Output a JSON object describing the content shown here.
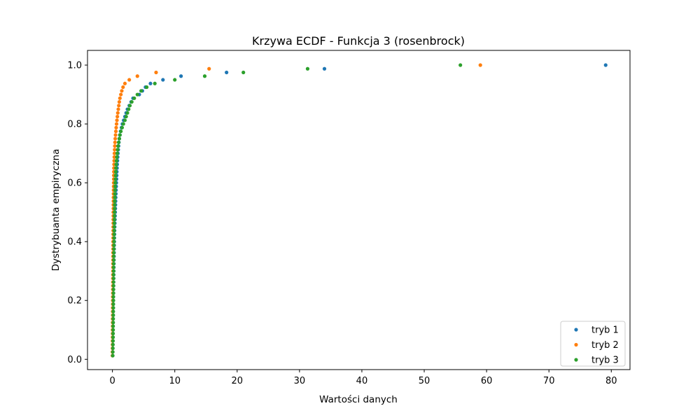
{
  "chart_data": {
    "type": "scatter",
    "title": "Krzywa ECDF - Funkcja 3 (rosenbrock)",
    "xlabel": "Wartości danych",
    "ylabel": "Dystrybuanta empiryczna",
    "xlim": [
      -4,
      83
    ],
    "ylim": [
      -0.035,
      1.05
    ],
    "xticks": [
      0,
      10,
      20,
      30,
      40,
      50,
      60,
      70,
      80
    ],
    "yticks": [
      0.0,
      0.2,
      0.4,
      0.6,
      0.8,
      1.0
    ],
    "xtick_labels": [
      "0",
      "10",
      "20",
      "30",
      "40",
      "50",
      "60",
      "70",
      "80"
    ],
    "ytick_labels": [
      "0.0",
      "0.2",
      "0.4",
      "0.6",
      "0.8",
      "1.0"
    ],
    "grid": false,
    "legend_position": "bottom-right",
    "series": [
      {
        "name": "tryb 1",
        "color": "#1f77b4",
        "points": [
          [
            0.02,
            0.0125
          ],
          [
            0.03,
            0.025
          ],
          [
            0.04,
            0.0375
          ],
          [
            0.05,
            0.05
          ],
          [
            0.05,
            0.0625
          ],
          [
            0.06,
            0.075
          ],
          [
            0.07,
            0.0875
          ],
          [
            0.07,
            0.1
          ],
          [
            0.08,
            0.1125
          ],
          [
            0.09,
            0.125
          ],
          [
            0.1,
            0.1375
          ],
          [
            0.1,
            0.15
          ],
          [
            0.11,
            0.1625
          ],
          [
            0.12,
            0.175
          ],
          [
            0.13,
            0.1875
          ],
          [
            0.13,
            0.2
          ],
          [
            0.14,
            0.2125
          ],
          [
            0.15,
            0.225
          ],
          [
            0.16,
            0.2375
          ],
          [
            0.17,
            0.25
          ],
          [
            0.18,
            0.2625
          ],
          [
            0.19,
            0.275
          ],
          [
            0.2,
            0.2875
          ],
          [
            0.21,
            0.3
          ],
          [
            0.22,
            0.3125
          ],
          [
            0.23,
            0.325
          ],
          [
            0.24,
            0.3375
          ],
          [
            0.25,
            0.35
          ],
          [
            0.26,
            0.3625
          ],
          [
            0.27,
            0.375
          ],
          [
            0.28,
            0.3875
          ],
          [
            0.3,
            0.4
          ],
          [
            0.31,
            0.4125
          ],
          [
            0.33,
            0.425
          ],
          [
            0.34,
            0.4375
          ],
          [
            0.36,
            0.45
          ],
          [
            0.38,
            0.4625
          ],
          [
            0.4,
            0.475
          ],
          [
            0.42,
            0.4875
          ],
          [
            0.44,
            0.5
          ],
          [
            0.46,
            0.5125
          ],
          [
            0.48,
            0.525
          ],
          [
            0.5,
            0.5375
          ],
          [
            0.52,
            0.55
          ],
          [
            0.55,
            0.5625
          ],
          [
            0.57,
            0.575
          ],
          [
            0.6,
            0.5875
          ],
          [
            0.62,
            0.6
          ],
          [
            0.65,
            0.6125
          ],
          [
            0.68,
            0.625
          ],
          [
            0.7,
            0.6375
          ],
          [
            0.73,
            0.65
          ],
          [
            0.76,
            0.6625
          ],
          [
            0.8,
            0.675
          ],
          [
            0.84,
            0.6875
          ],
          [
            0.88,
            0.7
          ],
          [
            0.93,
            0.7125
          ],
          [
            0.98,
            0.725
          ],
          [
            1.03,
            0.7375
          ],
          [
            1.1,
            0.75
          ],
          [
            1.2,
            0.7625
          ],
          [
            1.3,
            0.775
          ],
          [
            1.45,
            0.7875
          ],
          [
            1.6,
            0.8
          ],
          [
            1.8,
            0.8125
          ],
          [
            2.0,
            0.825
          ],
          [
            2.2,
            0.8375
          ],
          [
            2.4,
            0.85
          ],
          [
            2.7,
            0.8625
          ],
          [
            3.0,
            0.875
          ],
          [
            3.3,
            0.8875
          ],
          [
            4.3,
            0.9
          ],
          [
            4.8,
            0.9125
          ],
          [
            5.3,
            0.925
          ],
          [
            6.1,
            0.9375
          ],
          [
            8.1,
            0.95
          ],
          [
            11.0,
            0.9625
          ],
          [
            18.3,
            0.975
          ],
          [
            34.0,
            0.9875
          ],
          [
            79.1,
            1.0
          ]
        ]
      },
      {
        "name": "tryb 2",
        "color": "#ff7f0e",
        "points": [
          [
            0.0,
            0.0125
          ],
          [
            0.0,
            0.025
          ],
          [
            0.01,
            0.0375
          ],
          [
            0.01,
            0.05
          ],
          [
            0.01,
            0.0625
          ],
          [
            0.02,
            0.075
          ],
          [
            0.02,
            0.0875
          ],
          [
            0.02,
            0.1
          ],
          [
            0.03,
            0.1125
          ],
          [
            0.03,
            0.125
          ],
          [
            0.03,
            0.1375
          ],
          [
            0.04,
            0.15
          ],
          [
            0.04,
            0.1625
          ],
          [
            0.04,
            0.175
          ],
          [
            0.05,
            0.1875
          ],
          [
            0.05,
            0.2
          ],
          [
            0.05,
            0.2125
          ],
          [
            0.06,
            0.225
          ],
          [
            0.06,
            0.2375
          ],
          [
            0.06,
            0.25
          ],
          [
            0.07,
            0.2625
          ],
          [
            0.07,
            0.275
          ],
          [
            0.07,
            0.2875
          ],
          [
            0.08,
            0.3
          ],
          [
            0.08,
            0.3125
          ],
          [
            0.08,
            0.325
          ],
          [
            0.09,
            0.3375
          ],
          [
            0.09,
            0.35
          ],
          [
            0.09,
            0.3625
          ],
          [
            0.1,
            0.375
          ],
          [
            0.1,
            0.3875
          ],
          [
            0.1,
            0.4
          ],
          [
            0.11,
            0.4125
          ],
          [
            0.11,
            0.425
          ],
          [
            0.12,
            0.4375
          ],
          [
            0.12,
            0.45
          ],
          [
            0.13,
            0.4625
          ],
          [
            0.13,
            0.475
          ],
          [
            0.14,
            0.4875
          ],
          [
            0.14,
            0.5
          ],
          [
            0.15,
            0.5125
          ],
          [
            0.15,
            0.525
          ],
          [
            0.16,
            0.5375
          ],
          [
            0.16,
            0.55
          ],
          [
            0.17,
            0.5625
          ],
          [
            0.18,
            0.575
          ],
          [
            0.19,
            0.5875
          ],
          [
            0.2,
            0.6
          ],
          [
            0.21,
            0.6125
          ],
          [
            0.22,
            0.625
          ],
          [
            0.23,
            0.6375
          ],
          [
            0.24,
            0.65
          ],
          [
            0.26,
            0.6625
          ],
          [
            0.28,
            0.675
          ],
          [
            0.3,
            0.6875
          ],
          [
            0.32,
            0.7
          ],
          [
            0.35,
            0.7125
          ],
          [
            0.38,
            0.725
          ],
          [
            0.41,
            0.7375
          ],
          [
            0.45,
            0.75
          ],
          [
            0.5,
            0.7625
          ],
          [
            0.55,
            0.775
          ],
          [
            0.6,
            0.7875
          ],
          [
            0.66,
            0.8
          ],
          [
            0.72,
            0.8125
          ],
          [
            0.79,
            0.825
          ],
          [
            0.86,
            0.8375
          ],
          [
            0.94,
            0.85
          ],
          [
            1.02,
            0.8625
          ],
          [
            1.1,
            0.875
          ],
          [
            1.2,
            0.8875
          ],
          [
            1.35,
            0.9
          ],
          [
            1.5,
            0.9125
          ],
          [
            1.7,
            0.925
          ],
          [
            2.0,
            0.9375
          ],
          [
            2.7,
            0.95
          ],
          [
            4.0,
            0.9625
          ],
          [
            7.0,
            0.975
          ],
          [
            15.5,
            0.9875
          ],
          [
            59.0,
            1.0
          ]
        ]
      },
      {
        "name": "tryb 3",
        "color": "#2ca02c",
        "points": [
          [
            0.05,
            0.0125
          ],
          [
            0.06,
            0.025
          ],
          [
            0.07,
            0.0375
          ],
          [
            0.08,
            0.05
          ],
          [
            0.09,
            0.0625
          ],
          [
            0.1,
            0.075
          ],
          [
            0.1,
            0.0875
          ],
          [
            0.11,
            0.1
          ],
          [
            0.11,
            0.1125
          ],
          [
            0.12,
            0.125
          ],
          [
            0.12,
            0.1375
          ],
          [
            0.13,
            0.15
          ],
          [
            0.13,
            0.1625
          ],
          [
            0.14,
            0.175
          ],
          [
            0.14,
            0.1875
          ],
          [
            0.15,
            0.2
          ],
          [
            0.15,
            0.2125
          ],
          [
            0.16,
            0.225
          ],
          [
            0.16,
            0.2375
          ],
          [
            0.17,
            0.25
          ],
          [
            0.17,
            0.2625
          ],
          [
            0.18,
            0.275
          ],
          [
            0.18,
            0.2875
          ],
          [
            0.19,
            0.3
          ],
          [
            0.19,
            0.3125
          ],
          [
            0.2,
            0.325
          ],
          [
            0.21,
            0.3375
          ],
          [
            0.21,
            0.35
          ],
          [
            0.22,
            0.3625
          ],
          [
            0.23,
            0.375
          ],
          [
            0.24,
            0.3875
          ],
          [
            0.25,
            0.4
          ],
          [
            0.26,
            0.4125
          ],
          [
            0.27,
            0.425
          ],
          [
            0.28,
            0.4375
          ],
          [
            0.29,
            0.45
          ],
          [
            0.3,
            0.4625
          ],
          [
            0.31,
            0.475
          ],
          [
            0.32,
            0.4875
          ],
          [
            0.33,
            0.5
          ],
          [
            0.34,
            0.5125
          ],
          [
            0.35,
            0.525
          ],
          [
            0.36,
            0.5375
          ],
          [
            0.38,
            0.55
          ],
          [
            0.39,
            0.5625
          ],
          [
            0.41,
            0.575
          ],
          [
            0.43,
            0.5875
          ],
          [
            0.45,
            0.6
          ],
          [
            0.47,
            0.6125
          ],
          [
            0.5,
            0.625
          ],
          [
            0.53,
            0.6375
          ],
          [
            0.56,
            0.65
          ],
          [
            0.6,
            0.6625
          ],
          [
            0.65,
            0.675
          ],
          [
            0.7,
            0.6875
          ],
          [
            0.76,
            0.7
          ],
          [
            0.83,
            0.7125
          ],
          [
            0.9,
            0.725
          ],
          [
            1.0,
            0.7375
          ],
          [
            1.1,
            0.75
          ],
          [
            1.2,
            0.7625
          ],
          [
            1.35,
            0.775
          ],
          [
            1.55,
            0.7875
          ],
          [
            1.75,
            0.8
          ],
          [
            2.0,
            0.8125
          ],
          [
            2.2,
            0.825
          ],
          [
            2.4,
            0.8375
          ],
          [
            2.6,
            0.85
          ],
          [
            2.8,
            0.8625
          ],
          [
            3.1,
            0.875
          ],
          [
            3.5,
            0.8875
          ],
          [
            4.0,
            0.9
          ],
          [
            4.6,
            0.9125
          ],
          [
            5.5,
            0.925
          ],
          [
            6.8,
            0.9375
          ],
          [
            10.0,
            0.95
          ],
          [
            14.8,
            0.9625
          ],
          [
            21.0,
            0.975
          ],
          [
            31.3,
            0.9875
          ],
          [
            55.8,
            1.0
          ]
        ]
      }
    ]
  }
}
